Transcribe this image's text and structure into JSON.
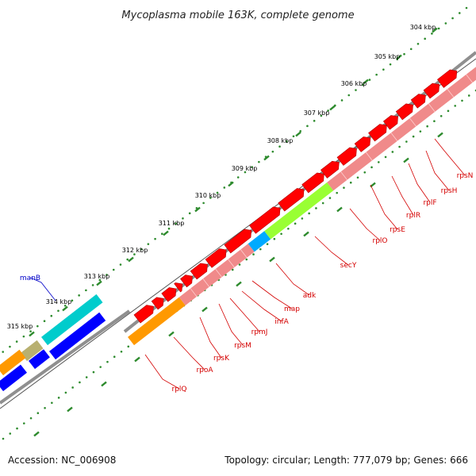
{
  "title": "Mycoplasma mobile 163K, complete genome",
  "footer": {
    "accession": "Accession: NC_006908",
    "summary": "Topology: circular; Length: 777,079 bp; Genes: 666"
  },
  "colors": {
    "backbone": "#8f8f8f",
    "tick": "#2e8b2e",
    "gene_label": "#d40000",
    "gene_label_alt": "#0000c8",
    "red": "#ff0000",
    "salmon": "#f08a8a",
    "orange": "#ff9900",
    "cyan": "#00cccc",
    "sky": "#00aaff",
    "lime": "#99ff33",
    "tan": "#b8b070",
    "blue": "#0000ff"
  },
  "ticks": [
    "304 kbp",
    "305 kbp",
    "306 kbp",
    "307 kbp",
    "308 kbp",
    "309 kbp",
    "310 kbp",
    "311 kbp",
    "312 kbp",
    "313 kbp",
    "314 kbp",
    "315 kbp"
  ],
  "genes": [
    {
      "name": "rpsN",
      "color": "gene_label"
    },
    {
      "name": "rpsH",
      "color": "gene_label"
    },
    {
      "name": "rplF",
      "color": "gene_label"
    },
    {
      "name": "rplR",
      "color": "gene_label"
    },
    {
      "name": "rpsE",
      "color": "gene_label"
    },
    {
      "name": "rplO",
      "color": "gene_label"
    },
    {
      "name": "secY",
      "color": "gene_label"
    },
    {
      "name": "adk",
      "color": "gene_label"
    },
    {
      "name": "map",
      "color": "gene_label"
    },
    {
      "name": "infA",
      "color": "gene_label"
    },
    {
      "name": "rpmJ",
      "color": "gene_label"
    },
    {
      "name": "rpsM",
      "color": "gene_label"
    },
    {
      "name": "rpsK",
      "color": "gene_label"
    },
    {
      "name": "rpoA",
      "color": "gene_label"
    },
    {
      "name": "rplQ",
      "color": "gene_label"
    },
    {
      "name": "manB",
      "color": "gene_label_alt"
    }
  ]
}
